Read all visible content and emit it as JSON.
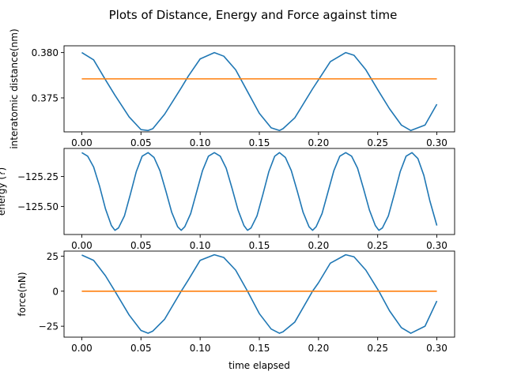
{
  "figure": {
    "suptitle": "Plots of Distance, Energy and Force against time"
  },
  "colors": {
    "series1": "#1f77b4",
    "series2": "#ff7f0e",
    "axis": "#000000",
    "background": "#ffffff"
  },
  "chart_data": [
    {
      "type": "line",
      "ylabel": "interatomic distance(nm)",
      "xlabel": "",
      "xlim": [
        -0.015,
        0.315
      ],
      "ylim": [
        0.37125,
        0.38075
      ],
      "xticks": [
        0.0,
        0.05,
        0.1,
        0.15,
        0.2,
        0.25,
        0.3
      ],
      "xtick_labels": [
        "0.00",
        "0.05",
        "0.10",
        "0.15",
        "0.20",
        "0.25",
        "0.30"
      ],
      "yticks": [
        0.375,
        0.38
      ],
      "ytick_labels": [
        "0.375",
        "0.380"
      ],
      "grid": false,
      "series": [
        {
          "x": [
            0.0,
            0.01,
            0.02,
            0.028,
            0.04,
            0.05,
            0.056,
            0.06,
            0.07,
            0.084,
            0.09,
            0.1,
            0.112,
            0.12,
            0.13,
            0.14,
            0.15,
            0.16,
            0.167,
            0.17,
            0.18,
            0.195,
            0.2,
            0.21,
            0.223,
            0.23,
            0.24,
            0.251,
            0.26,
            0.27,
            0.278,
            0.29,
            0.3
          ],
          "y": [
            0.38,
            0.3792,
            0.377,
            0.3753,
            0.3729,
            0.3715,
            0.3714,
            0.3716,
            0.3732,
            0.3761,
            0.3774,
            0.3793,
            0.38,
            0.3796,
            0.3781,
            0.3757,
            0.3733,
            0.3717,
            0.3714,
            0.3716,
            0.3728,
            0.376,
            0.377,
            0.379,
            0.38,
            0.3797,
            0.3781,
            0.3757,
            0.3738,
            0.372,
            0.3714,
            0.372,
            0.3743
          ]
        },
        {
          "x": [
            0.0,
            0.3
          ],
          "y": [
            0.3771,
            0.3771
          ]
        }
      ]
    },
    {
      "type": "line",
      "ylabel": "energy (?)",
      "xlabel": "",
      "xlim": [
        -0.015,
        0.315
      ],
      "ylim": [
        -125.735,
        -125.015
      ],
      "xticks": [
        0.0,
        0.05,
        0.1,
        0.15,
        0.2,
        0.25,
        0.3
      ],
      "xtick_labels": [
        "0.00",
        "0.05",
        "0.10",
        "0.15",
        "0.20",
        "0.25",
        "0.30"
      ],
      "yticks": [
        -125.25,
        -125.5
      ],
      "ytick_labels": [
        "−125.25",
        "−125.50"
      ],
      "grid": false,
      "series": [
        {
          "x": [
            0.0,
            0.005,
            0.01,
            0.015,
            0.02,
            0.025,
            0.028,
            0.031,
            0.036,
            0.041,
            0.046,
            0.051,
            0.056,
            0.061,
            0.066,
            0.071,
            0.076,
            0.081,
            0.084,
            0.087,
            0.092,
            0.097,
            0.102,
            0.107,
            0.112,
            0.117,
            0.122,
            0.127,
            0.132,
            0.137,
            0.14,
            0.143,
            0.148,
            0.153,
            0.158,
            0.163,
            0.167,
            0.172,
            0.177,
            0.182,
            0.187,
            0.192,
            0.195,
            0.198,
            0.203,
            0.208,
            0.213,
            0.218,
            0.223,
            0.228,
            0.233,
            0.238,
            0.243,
            0.248,
            0.251,
            0.254,
            0.259,
            0.264,
            0.269,
            0.274,
            0.279,
            0.284,
            0.289,
            0.294,
            0.3
          ],
          "y": [
            -125.05,
            -125.08,
            -125.17,
            -125.33,
            -125.52,
            -125.66,
            -125.7,
            -125.68,
            -125.58,
            -125.4,
            -125.21,
            -125.08,
            -125.05,
            -125.09,
            -125.2,
            -125.37,
            -125.55,
            -125.67,
            -125.7,
            -125.67,
            -125.56,
            -125.38,
            -125.2,
            -125.08,
            -125.05,
            -125.08,
            -125.18,
            -125.35,
            -125.53,
            -125.66,
            -125.7,
            -125.68,
            -125.58,
            -125.4,
            -125.21,
            -125.08,
            -125.05,
            -125.09,
            -125.2,
            -125.37,
            -125.55,
            -125.67,
            -125.7,
            -125.67,
            -125.56,
            -125.38,
            -125.2,
            -125.08,
            -125.05,
            -125.08,
            -125.18,
            -125.35,
            -125.53,
            -125.66,
            -125.7,
            -125.68,
            -125.58,
            -125.4,
            -125.21,
            -125.08,
            -125.05,
            -125.1,
            -125.24,
            -125.45,
            -125.66
          ]
        }
      ]
    },
    {
      "type": "line",
      "ylabel": "force(nN)",
      "xlabel": "time elapsed",
      "xlim": [
        -0.015,
        0.315
      ],
      "ylim": [
        -32.8,
        28.6
      ],
      "xticks": [
        0.0,
        0.05,
        0.1,
        0.15,
        0.2,
        0.25,
        0.3
      ],
      "xtick_labels": [
        "0.00",
        "0.05",
        "0.10",
        "0.15",
        "0.20",
        "0.25",
        "0.30"
      ],
      "yticks": [
        25,
        0,
        -25
      ],
      "ytick_labels": [
        "25",
        "0",
        "−25"
      ],
      "grid": false,
      "series": [
        {
          "x": [
            0.0,
            0.01,
            0.02,
            0.028,
            0.04,
            0.05,
            0.056,
            0.06,
            0.07,
            0.084,
            0.09,
            0.1,
            0.112,
            0.12,
            0.13,
            0.14,
            0.15,
            0.16,
            0.167,
            0.17,
            0.18,
            0.195,
            0.2,
            0.21,
            0.223,
            0.23,
            0.24,
            0.251,
            0.26,
            0.27,
            0.278,
            0.29,
            0.3
          ],
          "y": [
            25.8,
            22.0,
            11.0,
            0.0,
            -17.0,
            -28.0,
            -30.0,
            -28.5,
            -20.0,
            0.0,
            8.0,
            22.0,
            26.0,
            24.0,
            15.0,
            0.0,
            -16.0,
            -27.0,
            -30.0,
            -29.0,
            -22.0,
            0.0,
            6.0,
            20.0,
            26.0,
            24.5,
            15.0,
            0.0,
            -14.0,
            -26.0,
            -30.0,
            -25.0,
            -7.0
          ]
        },
        {
          "x": [
            0.0,
            0.3
          ],
          "y": [
            0.0,
            0.0
          ]
        }
      ]
    }
  ]
}
